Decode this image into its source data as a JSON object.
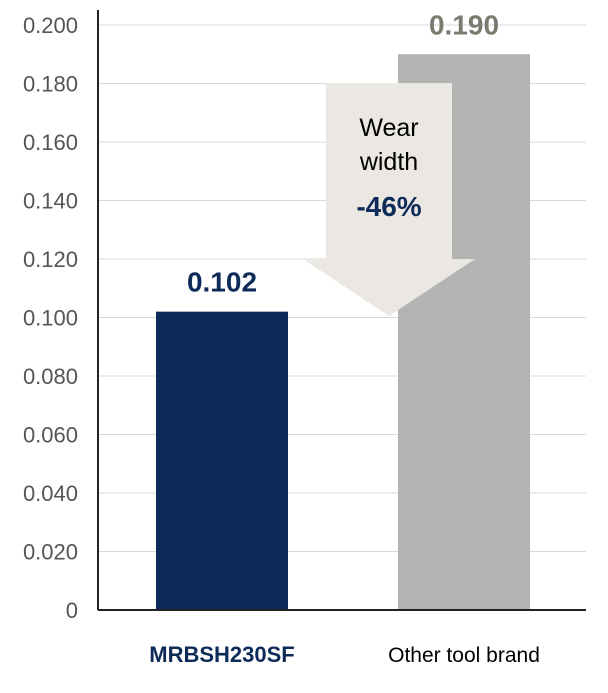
{
  "chart_data": {
    "type": "bar",
    "categories": [
      "MRBSH230SF",
      "Other tool brand"
    ],
    "values": [
      0.102,
      0.19
    ],
    "data_labels": [
      "0.102",
      "0.190"
    ],
    "colors": [
      "#0d2b58",
      "#b3b3b3"
    ],
    "label_colors": [
      "#0d2b58",
      "#7a7a6e"
    ],
    "ylim": [
      0,
      0.2
    ],
    "yticks": [
      "0",
      "0.020",
      "0.040",
      "0.060",
      "0.080",
      "0.100",
      "0.120",
      "0.140",
      "0.160",
      "0.180",
      "0.200"
    ],
    "grid": true,
    "legend": "none",
    "annotation": {
      "line1": "Wear",
      "line2": "width",
      "change": "-46%",
      "arrow_color": "#ebe8e3"
    }
  }
}
